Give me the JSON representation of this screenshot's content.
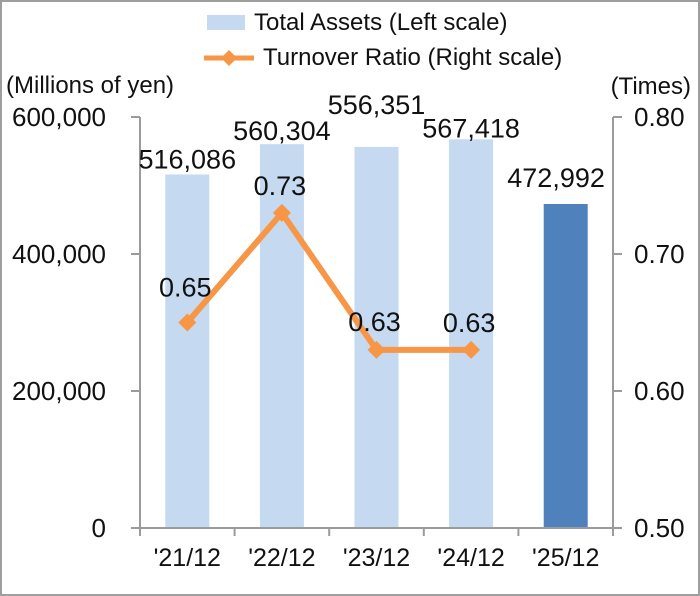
{
  "chart_data": {
    "type": "combo_bar_line",
    "categories": [
      "'21/12",
      "'22/12",
      "'23/12",
      "'24/12",
      "'25/12"
    ],
    "series": [
      {
        "name": "Total Assets (Left scale)",
        "type": "bar",
        "axis": "left",
        "values": [
          516086,
          560304,
          556351,
          567418,
          472992
        ],
        "value_labels": [
          "516,086",
          "560,304",
          "556,351",
          "567,418",
          "472,992"
        ],
        "bar_colors": [
          "#C5D9F1",
          "#C5D9F1",
          "#C5D9F1",
          "#C5D9F1",
          "#4F81BD"
        ]
      },
      {
        "name": "Turnover Ratio (Right scale)",
        "type": "line",
        "axis": "right",
        "marker": "diamond",
        "values": [
          0.65,
          0.73,
          0.63,
          0.63
        ],
        "value_labels": [
          "0.65",
          "0.73",
          "0.63",
          "0.63"
        ],
        "color": "#F79646"
      }
    ],
    "left_axis": {
      "title": "(Millions of yen)",
      "min": 0,
      "max": 600000,
      "tick_values": [
        0,
        200000,
        400000,
        600000
      ],
      "tick_labels": [
        "0",
        "200,000",
        "400,000",
        "600,000"
      ]
    },
    "right_axis": {
      "title": "(Times)",
      "min": 0.5,
      "max": 0.8,
      "tick_values": [
        0.5,
        0.6,
        0.7,
        0.8
      ],
      "tick_labels": [
        "0.50",
        "0.60",
        "0.70",
        "0.80"
      ]
    },
    "legend_position": "top",
    "grid": false,
    "colors": {
      "bar_light": "#C5D9F1",
      "bar_dark": "#4F81BD",
      "line": "#F79646",
      "axis": "#9B9B9B",
      "text": "#111111",
      "border": "#9E9E9E",
      "background": "#FFFFFF"
    }
  }
}
